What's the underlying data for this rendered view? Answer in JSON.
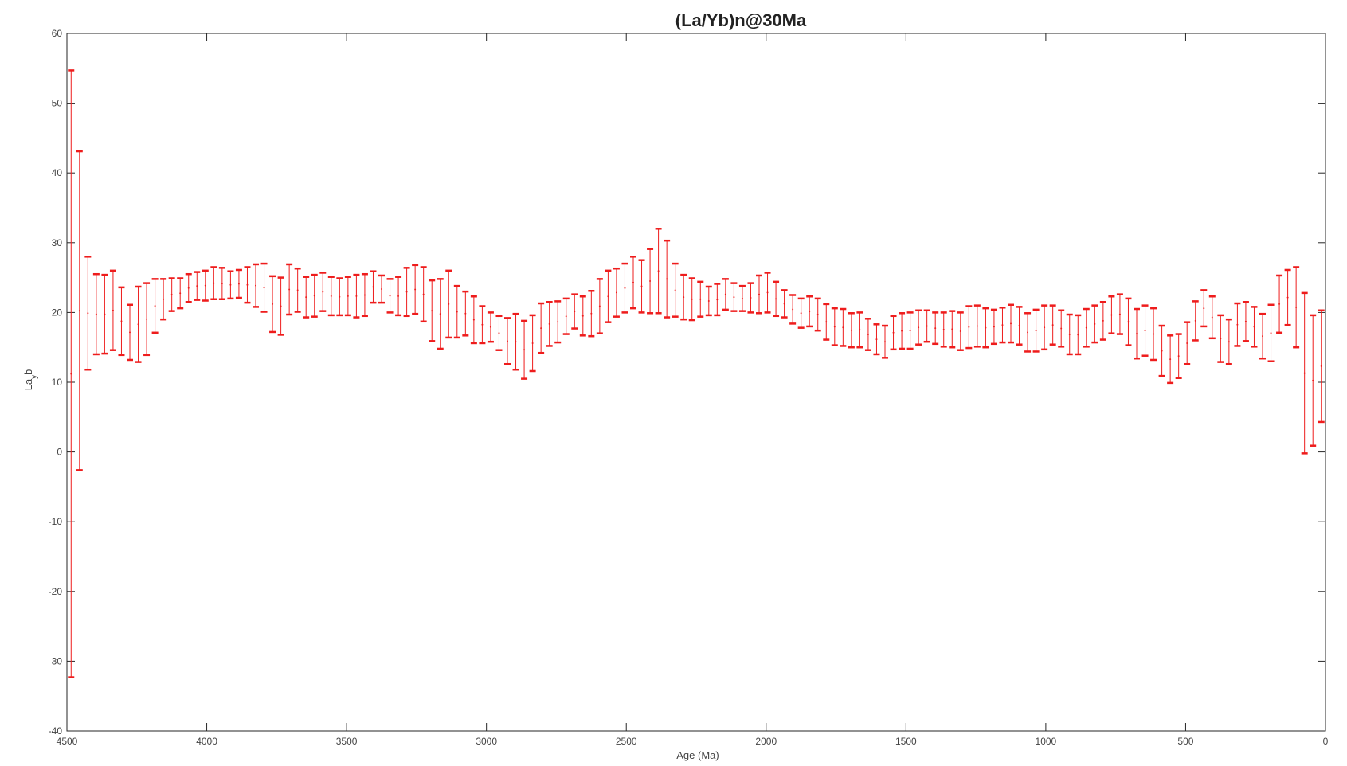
{
  "chart_data": {
    "type": "errorbar",
    "title": "(La/Yb)n@30Ma",
    "xlabel": "Age (Ma)",
    "ylabel": "La",
    "ylabel_sub": "y",
    "ylabel_tail": "b",
    "xlim": [
      4500,
      0
    ],
    "xreversed": true,
    "ylim": [
      -40,
      60
    ],
    "xticks": [
      4500,
      4000,
      3500,
      3000,
      2500,
      2000,
      1500,
      1000,
      500,
      0
    ],
    "yticks": [
      -40,
      -30,
      -20,
      -10,
      0,
      10,
      20,
      30,
      40,
      50,
      60
    ],
    "grid": false,
    "series": [
      {
        "color": "#ee1c1c",
        "x": [
          4485,
          4455,
          4425,
          4395,
          4365,
          4335,
          4305,
          4275,
          4245,
          4215,
          4185,
          4155,
          4125,
          4095,
          4065,
          4035,
          4005,
          3975,
          3945,
          3915,
          3885,
          3855,
          3825,
          3795,
          3765,
          3735,
          3705,
          3675,
          3645,
          3615,
          3585,
          3555,
          3525,
          3495,
          3465,
          3435,
          3405,
          3375,
          3345,
          3315,
          3285,
          3255,
          3225,
          3195,
          3165,
          3135,
          3105,
          3075,
          3045,
          3015,
          2985,
          2955,
          2925,
          2895,
          2865,
          2835,
          2805,
          2775,
          2745,
          2715,
          2685,
          2655,
          2625,
          2595,
          2565,
          2535,
          2505,
          2475,
          2445,
          2415,
          2385,
          2355,
          2325,
          2295,
          2265,
          2235,
          2205,
          2175,
          2145,
          2115,
          2085,
          2055,
          2025,
          1995,
          1965,
          1935,
          1905,
          1875,
          1845,
          1815,
          1785,
          1755,
          1725,
          1695,
          1665,
          1635,
          1605,
          1575,
          1545,
          1515,
          1485,
          1455,
          1425,
          1395,
          1365,
          1335,
          1305,
          1275,
          1245,
          1215,
          1185,
          1155,
          1125,
          1095,
          1065,
          1035,
          1005,
          975,
          945,
          915,
          885,
          855,
          825,
          795,
          765,
          735,
          705,
          675,
          645,
          615,
          585,
          555,
          525,
          495,
          465,
          435,
          405,
          375,
          345,
          315,
          285,
          255,
          225,
          195,
          165,
          135,
          105,
          75,
          45,
          15
        ],
        "upper": [
          54.7,
          43.1,
          28.0,
          25.5,
          25.4,
          26.0,
          23.6,
          21.1,
          23.7,
          24.2,
          24.8,
          24.8,
          24.9,
          24.9,
          25.5,
          25.8,
          26.0,
          26.5,
          26.4,
          25.9,
          26.1,
          26.5,
          26.9,
          27.0,
          25.2,
          25.0,
          26.9,
          26.3,
          25.1,
          25.4,
          25.7,
          25.1,
          24.9,
          25.1,
          25.4,
          25.5,
          25.9,
          25.3,
          24.8,
          25.1,
          26.4,
          26.8,
          26.5,
          24.6,
          24.8,
          26.0,
          23.8,
          23.0,
          22.3,
          20.9,
          20.0,
          19.5,
          19.2,
          19.8,
          18.8,
          19.6,
          21.3,
          21.5,
          21.6,
          22.0,
          22.6,
          22.3,
          23.1,
          24.8,
          26.0,
          26.3,
          27.0,
          28.0,
          27.5,
          29.1,
          32.0,
          30.3,
          27.0,
          25.4,
          24.9,
          24.4,
          23.7,
          24.1,
          24.8,
          24.2,
          23.8,
          24.2,
          25.3,
          25.7,
          24.4,
          23.2,
          22.5,
          22.0,
          22.3,
          22.0,
          21.2,
          20.6,
          20.5,
          19.9,
          20.0,
          19.1,
          18.3,
          18.1,
          19.5,
          19.9,
          20.0,
          20.3,
          20.3,
          20.0,
          20.0,
          20.2,
          20.0,
          20.9,
          21.0,
          20.6,
          20.4,
          20.7,
          21.1,
          20.8,
          19.9,
          20.4,
          21.0,
          21.0,
          20.3,
          19.7,
          19.6,
          20.5,
          21.0,
          21.5,
          22.3,
          22.6,
          22.0,
          20.5,
          21.0,
          20.6,
          18.1,
          16.7,
          16.9,
          18.6,
          21.6,
          23.2,
          22.3,
          19.6,
          19.0,
          21.3,
          21.5,
          20.8,
          19.8,
          21.1,
          25.3,
          26.1,
          26.5,
          22.8,
          19.6,
          20.3
        ],
        "lower": [
          -32.3,
          -2.6,
          11.8,
          14.0,
          14.1,
          14.6,
          13.9,
          13.2,
          12.9,
          13.9,
          17.1,
          19.0,
          20.2,
          20.6,
          21.5,
          21.8,
          21.7,
          21.9,
          21.9,
          22.0,
          22.1,
          21.4,
          20.8,
          20.1,
          17.2,
          16.8,
          19.7,
          20.1,
          19.3,
          19.4,
          20.2,
          19.6,
          19.6,
          19.6,
          19.3,
          19.5,
          21.4,
          21.4,
          20.0,
          19.6,
          19.5,
          19.8,
          18.7,
          15.9,
          14.8,
          16.4,
          16.4,
          16.7,
          15.6,
          15.6,
          15.8,
          14.6,
          12.6,
          11.8,
          10.5,
          11.6,
          14.2,
          15.2,
          15.7,
          16.9,
          17.7,
          16.7,
          16.6,
          17.0,
          18.6,
          19.4,
          20.0,
          20.6,
          20.0,
          19.9,
          19.9,
          19.3,
          19.4,
          19.0,
          18.9,
          19.4,
          19.6,
          19.6,
          20.4,
          20.2,
          20.2,
          20.0,
          19.9,
          20.0,
          19.5,
          19.3,
          18.4,
          17.8,
          18.0,
          17.4,
          16.1,
          15.3,
          15.2,
          15.0,
          15.0,
          14.6,
          14.0,
          13.5,
          14.7,
          14.8,
          14.8,
          15.4,
          15.8,
          15.5,
          15.1,
          15.0,
          14.6,
          14.9,
          15.1,
          15.0,
          15.5,
          15.7,
          15.7,
          15.4,
          14.4,
          14.4,
          14.7,
          15.4,
          15.1,
          14.0,
          14.0,
          15.1,
          15.7,
          16.1,
          17.0,
          16.9,
          15.3,
          13.4,
          13.8,
          13.2,
          10.9,
          9.9,
          10.6,
          12.6,
          16.0,
          18.0,
          16.3,
          12.9,
          12.6,
          15.2,
          15.9,
          15.1,
          13.4,
          13.0,
          17.1,
          18.2,
          15.0,
          -0.2,
          0.9,
          4.3
        ]
      }
    ]
  }
}
